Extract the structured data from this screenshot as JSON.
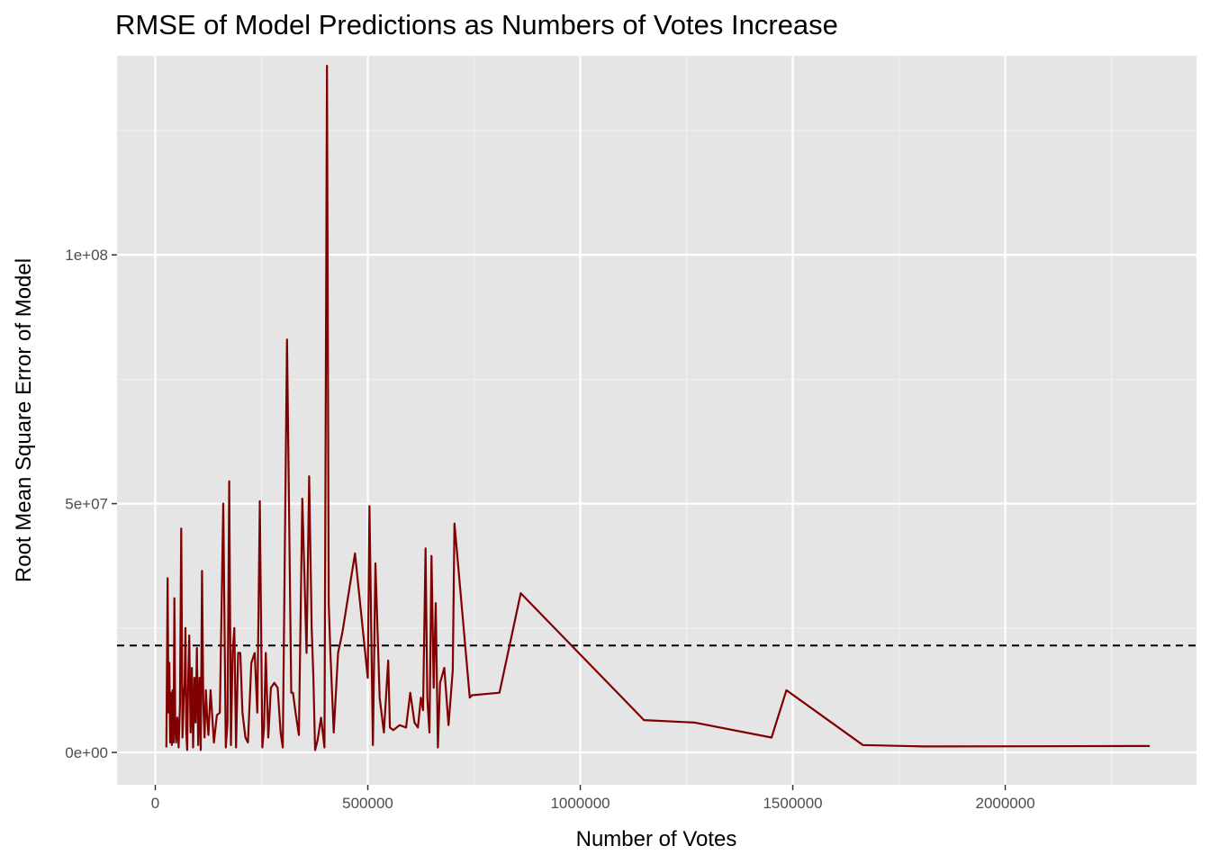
{
  "chart_data": {
    "type": "line",
    "title": "RMSE of Model Predictions as Numbers of Votes Increase",
    "xlabel": "Number of Votes",
    "ylabel": "Root Mean Square Error of Model",
    "xlim": [
      -90000,
      2450000
    ],
    "ylim": [
      -6500000,
      140000000
    ],
    "x_ticks": [
      0,
      500000,
      1000000,
      1500000,
      2000000
    ],
    "x_tick_labels": [
      "0",
      "500000",
      "1000000",
      "1500000",
      "2000000"
    ],
    "x_minor_ticks": [
      250000,
      750000,
      1250000,
      1750000,
      2250000
    ],
    "y_ticks": [
      0,
      50000000,
      100000000
    ],
    "y_tick_labels": [
      "0e+00",
      "5e+07",
      "1e+08"
    ],
    "y_minor_ticks": [
      25000000,
      75000000,
      125000000
    ],
    "grid": true,
    "reference_line": {
      "y": 21500000,
      "style": "dashed",
      "color": "#000000"
    },
    "series": [
      {
        "color": "#800000",
        "x": [
          26000,
          29000,
          31000,
          33000,
          35000,
          37000,
          39000,
          41000,
          43000,
          45000,
          47000,
          49000,
          52000,
          55000,
          58000,
          61000,
          64000,
          67000,
          69000,
          71000,
          73000,
          75000,
          77000,
          80000,
          83000,
          86000,
          89000,
          92000,
          95000,
          98000,
          101000,
          104000,
          107000,
          110000,
          113000,
          116000,
          119000,
          122000,
          125000,
          130000,
          138000,
          145000,
          152000,
          160000,
          166000,
          170000,
          174000,
          178000,
          182000,
          186000,
          190000,
          195000,
          200000,
          205000,
          212000,
          218000,
          226000,
          234000,
          240000,
          246000,
          252000,
          256000,
          260000,
          266000,
          272000,
          280000,
          288000,
          295000,
          300000,
          310000,
          320000,
          324000,
          330000,
          338000,
          346000,
          356000,
          362000,
          368000,
          372000,
          376000,
          382000,
          390000,
          398000,
          404000,
          408000,
          412000,
          420000,
          430000,
          440000,
          470000,
          500000,
          504000,
          508000,
          512000,
          518000,
          528000,
          538000,
          548000,
          552000,
          560000,
          575000,
          590000,
          600000,
          610000,
          618000,
          625000,
          630000,
          636000,
          640000,
          645000,
          650000,
          655000,
          660000,
          665000,
          670000,
          680000,
          690000,
          700000,
          704000,
          740000,
          745000,
          810000,
          860000,
          1150000,
          1270000,
          1450000,
          1485000,
          1665000,
          1810000,
          2340000
        ],
        "y": [
          1000000,
          35000000,
          8000000,
          18000000,
          2000000,
          12000000,
          1500000,
          12500000,
          2000000,
          31000000,
          5000000,
          2000000,
          7000000,
          1000000,
          9500000,
          45000000,
          3000000,
          11000000,
          14000000,
          25000000,
          4000000,
          500000,
          12000000,
          23500000,
          4000000,
          17000000,
          1000000,
          15000000,
          6000000,
          21000000,
          1500000,
          15000000,
          500000,
          36500000,
          10000000,
          3000000,
          12500000,
          7000000,
          3500000,
          12500000,
          2000000,
          7500000,
          8000000,
          50000000,
          1000000,
          6000000,
          54500000,
          1500000,
          20000000,
          25000000,
          1000000,
          20000000,
          20000000,
          8000000,
          3000000,
          2000000,
          18000000,
          20000000,
          8000000,
          50500000,
          1000000,
          5000000,
          20000000,
          3000000,
          13000000,
          14000000,
          13000000,
          4000000,
          1000000,
          83000000,
          12000000,
          12000000,
          8000000,
          3500000,
          51000000,
          20000000,
          55500000,
          25000000,
          15000000,
          500000,
          2500000,
          7000000,
          1000000,
          138000000,
          30000000,
          20000000,
          4000000,
          20000000,
          24000000,
          40000000,
          15000000,
          49500000,
          25000000,
          1500000,
          38000000,
          11000000,
          4000000,
          18500000,
          5000000,
          4500000,
          5500000,
          5000000,
          12000000,
          6000000,
          5000000,
          11000000,
          8500000,
          41000000,
          11000000,
          4000000,
          39500000,
          13000000,
          30000000,
          1000000,
          14000000,
          17000000,
          5500000,
          16500000,
          46000000,
          11000000,
          11500000,
          12000000,
          32000000,
          6500000,
          6000000,
          3000000,
          12500000,
          1500000,
          1200000,
          1300000
        ]
      }
    ]
  }
}
